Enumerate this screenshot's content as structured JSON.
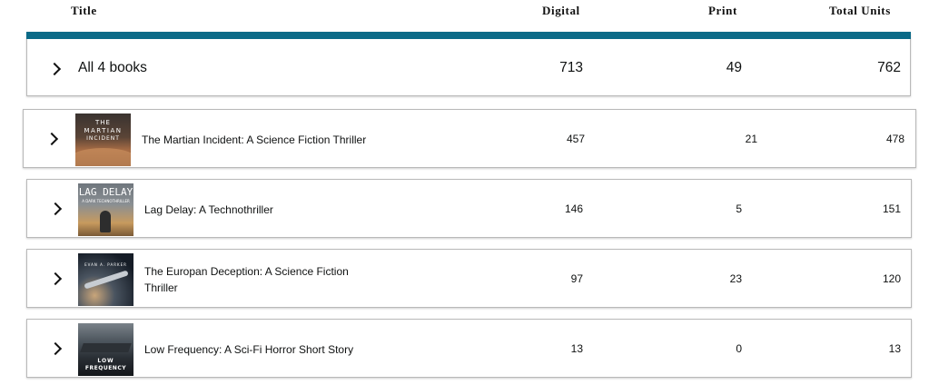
{
  "columns": {
    "title": "Title",
    "digital": "Digital",
    "print": "Print",
    "total": "Total Units"
  },
  "summary": {
    "label": "All 4 books",
    "digital": "713",
    "print": "49",
    "total": "762"
  },
  "books": [
    {
      "title": "The Martian Incident: A Science Fiction Thriller",
      "digital": "457",
      "print": "21",
      "total": "478",
      "cover_text": [
        "THE",
        "MARTIAN",
        "INCIDENT"
      ]
    },
    {
      "title": "Lag Delay: A Technothriller",
      "digital": "146",
      "print": "5",
      "total": "151",
      "cover_text": [
        "LAG DELAY",
        "A DARK TECHNOTHRILLER"
      ]
    },
    {
      "title": "The Europan Deception: A Science Fiction Thriller",
      "digital": "97",
      "print": "23",
      "total": "120",
      "cover_text": [
        "EVAN A. PARKER"
      ]
    },
    {
      "title": "Low Frequency: A Sci-Fi Horror Short Story",
      "digital": "13",
      "print": "0",
      "total": "13",
      "cover_text": [
        "LOW",
        "FREQUENCY"
      ]
    }
  ],
  "colors": {
    "accent_bar": "#0b6a87",
    "border": "#b9b9b9"
  },
  "icons": {
    "expand": "chevron-right-icon"
  }
}
